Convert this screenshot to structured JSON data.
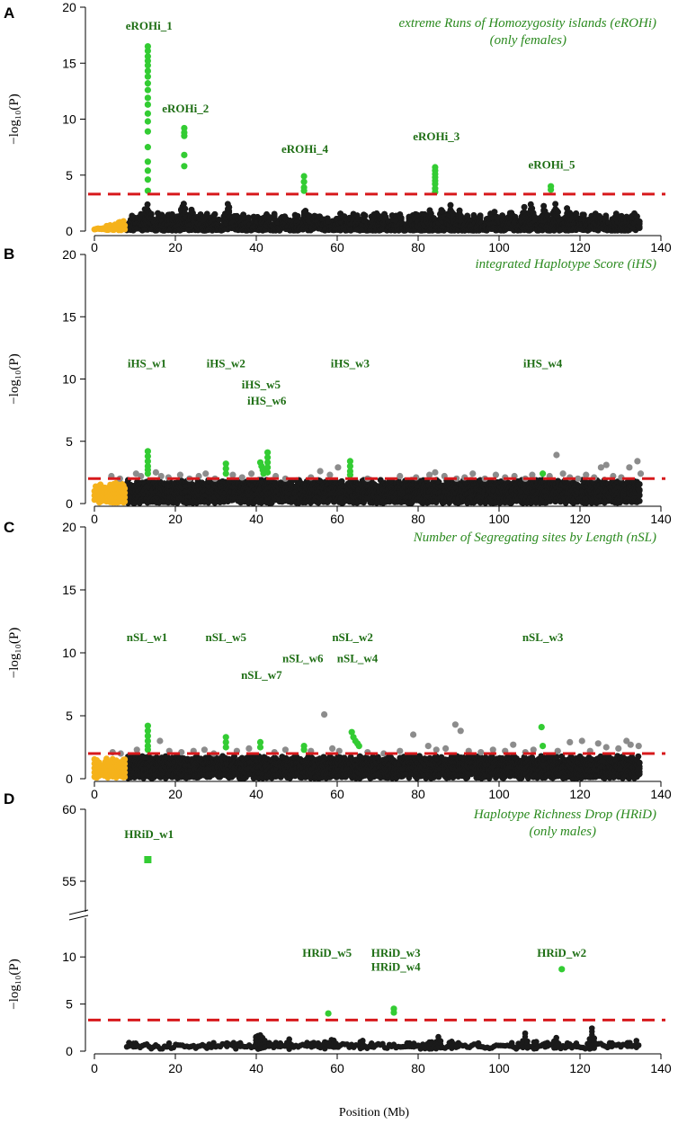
{
  "figure": {
    "x_axis_label": "Position (Mb)",
    "y_axis_label": "−log₁₀(P)",
    "colors": {
      "background_snps": "#1a1a1a",
      "nonsignificant_grey": "#8c8c8c",
      "significant": "#33cc33",
      "par_region": "#f5b21b",
      "threshold": "#d7191c",
      "annotation_text": "#1e6e14",
      "title_text": "#2b8a1f"
    }
  },
  "chart_data": [
    {
      "panel": "A",
      "type": "scatter",
      "title": [
        "extreme Runs of Homozygosity islands (eROHi)",
        "(only females)"
      ],
      "xlabel": "",
      "ylabel": "−log10(P)",
      "xlim": [
        0,
        140
      ],
      "ylim": [
        0,
        20
      ],
      "x_ticks": [
        0,
        20,
        40,
        60,
        80,
        100,
        120,
        140
      ],
      "y_ticks": [
        0,
        5,
        10,
        15,
        20
      ],
      "threshold": 3.3,
      "background": {
        "start": 8,
        "end": 135,
        "base": 0.3,
        "max": 1.6,
        "peaks": [
          [
            11,
            1.8
          ],
          [
            13,
            3.2
          ],
          [
            22,
            3.4
          ],
          [
            24,
            2.4
          ],
          [
            33,
            2.8
          ],
          [
            52,
            2.2
          ],
          [
            61,
            1.2
          ],
          [
            63,
            1.2
          ],
          [
            79,
            1.5
          ],
          [
            83,
            2.2
          ],
          [
            86,
            2.6
          ],
          [
            88,
            2.7
          ],
          [
            90,
            2.4
          ],
          [
            99,
            2.0
          ],
          [
            103,
            2.5
          ],
          [
            106,
            2.6
          ],
          [
            108,
            2.8
          ],
          [
            111,
            2.4
          ],
          [
            114,
            3.4
          ],
          [
            117,
            2.4
          ],
          [
            121,
            1.7
          ],
          [
            125,
            1.6
          ],
          [
            130,
            1.4
          ],
          [
            133,
            1.3
          ]
        ]
      },
      "par": {
        "start": 0,
        "end": 7.5,
        "max": 0.8
      },
      "significant_points": [
        [
          13.2,
          16.5
        ],
        [
          13.2,
          16.1
        ],
        [
          13.2,
          15.6
        ],
        [
          13.2,
          15.2
        ],
        [
          13.2,
          14.8
        ],
        [
          13.2,
          14.3
        ],
        [
          13.2,
          13.8
        ],
        [
          13.2,
          13.2
        ],
        [
          13.2,
          12.6
        ],
        [
          13.2,
          11.9
        ],
        [
          13.2,
          11.3
        ],
        [
          13.2,
          10.5
        ],
        [
          13.2,
          9.8
        ],
        [
          13.2,
          8.9
        ],
        [
          13.2,
          7.5
        ],
        [
          13.2,
          6.2
        ],
        [
          13.2,
          5.4
        ],
        [
          13.2,
          4.6
        ],
        [
          13.2,
          3.6
        ],
        [
          22.2,
          9.2
        ],
        [
          22.2,
          8.8
        ],
        [
          22.2,
          8.5
        ],
        [
          22.2,
          6.8
        ],
        [
          22.2,
          5.8
        ],
        [
          51.8,
          4.9
        ],
        [
          51.8,
          4.4
        ],
        [
          51.8,
          3.9
        ],
        [
          51.8,
          3.6
        ],
        [
          84.2,
          5.7
        ],
        [
          84.2,
          5.4
        ],
        [
          84.2,
          5.1
        ],
        [
          84.2,
          4.8
        ],
        [
          84.2,
          4.5
        ],
        [
          84.2,
          4.2
        ],
        [
          84.2,
          3.8
        ],
        [
          84.2,
          3.5
        ],
        [
          112.8,
          4.0
        ],
        [
          112.8,
          3.7
        ]
      ],
      "grey_points": [],
      "square_points": [],
      "annotations": [
        {
          "label": "eROHi_1",
          "x": 13.5,
          "y": 18.4
        },
        {
          "label": "eROHi_2",
          "x": 22.5,
          "y": 11.0
        },
        {
          "label": "eROHi_4",
          "x": 52.0,
          "y": 7.4
        },
        {
          "label": "eROHi_3",
          "x": 84.5,
          "y": 8.5
        },
        {
          "label": "eROHi_5",
          "x": 113.0,
          "y": 6.0
        }
      ]
    },
    {
      "panel": "B",
      "type": "scatter",
      "title": [
        "integrated Haplotype Score (iHS)"
      ],
      "xlabel": "",
      "ylabel": "−log10(P)",
      "xlim": [
        0,
        140
      ],
      "ylim": [
        0,
        20
      ],
      "x_ticks": [
        0,
        20,
        40,
        60,
        80,
        100,
        120,
        140
      ],
      "y_ticks": [
        0,
        5,
        10,
        15,
        20
      ],
      "threshold": 2.0,
      "background": {
        "start": 8,
        "end": 135,
        "base": 1.3,
        "max": 1.9,
        "peaks": []
      },
      "par": {
        "start": 0,
        "end": 7.5,
        "max": 1.7
      },
      "significant_points": [
        [
          13.2,
          4.2
        ],
        [
          13.2,
          3.8
        ],
        [
          13.2,
          3.4
        ],
        [
          13.2,
          3.0
        ],
        [
          13.2,
          2.7
        ],
        [
          13.2,
          2.4
        ],
        [
          32.5,
          3.2
        ],
        [
          32.5,
          2.8
        ],
        [
          32.5,
          2.4
        ],
        [
          41.0,
          3.3
        ],
        [
          41.3,
          3.0
        ],
        [
          41.6,
          2.7
        ],
        [
          41.8,
          2.4
        ],
        [
          42.8,
          4.1
        ],
        [
          42.8,
          3.7
        ],
        [
          42.8,
          3.3
        ],
        [
          42.8,
          2.9
        ],
        [
          42.8,
          2.5
        ],
        [
          63.2,
          3.4
        ],
        [
          63.2,
          3.0
        ],
        [
          63.2,
          2.6
        ],
        [
          63.2,
          2.3
        ],
        [
          110.8,
          2.4
        ]
      ],
      "grey_points": [
        [
          4.2,
          2.2
        ],
        [
          6.3,
          2.0
        ],
        [
          10.3,
          2.4
        ],
        [
          11.5,
          2.2
        ],
        [
          15.2,
          2.5
        ],
        [
          16.5,
          2.2
        ],
        [
          18.3,
          2.1
        ],
        [
          21.2,
          2.3
        ],
        [
          23.5,
          2.0
        ],
        [
          25.8,
          2.2
        ],
        [
          27.5,
          2.4
        ],
        [
          29.8,
          2.0
        ],
        [
          34.2,
          2.3
        ],
        [
          36.5,
          2.1
        ],
        [
          38.8,
          2.4
        ],
        [
          44.8,
          2.2
        ],
        [
          47.2,
          2.0
        ],
        [
          53.5,
          2.1
        ],
        [
          55.8,
          2.6
        ],
        [
          58.2,
          2.3
        ],
        [
          60.2,
          2.9
        ],
        [
          67.5,
          2.0
        ],
        [
          75.5,
          2.2
        ],
        [
          79.5,
          2.1
        ],
        [
          82.8,
          2.3
        ],
        [
          84.2,
          2.5
        ],
        [
          86.5,
          2.2
        ],
        [
          89.5,
          2.0
        ],
        [
          91.5,
          2.1
        ],
        [
          93.5,
          2.4
        ],
        [
          96.5,
          2.0
        ],
        [
          99.2,
          2.3
        ],
        [
          101.5,
          2.1
        ],
        [
          103.8,
          2.2
        ],
        [
          106.5,
          2.0
        ],
        [
          108.2,
          2.3
        ],
        [
          112.5,
          2.2
        ],
        [
          114.2,
          3.9
        ],
        [
          115.8,
          2.4
        ],
        [
          117.5,
          2.1
        ],
        [
          119.5,
          2.0
        ],
        [
          121.5,
          2.3
        ],
        [
          123.5,
          2.1
        ],
        [
          125.2,
          2.9
        ],
        [
          126.5,
          3.1
        ],
        [
          128.2,
          2.2
        ],
        [
          130.2,
          2.1
        ],
        [
          132.2,
          2.9
        ],
        [
          134.2,
          3.4
        ],
        [
          135.0,
          2.4
        ]
      ],
      "square_points": [],
      "annotations": [
        {
          "label": "iHS_w1",
          "x": 13.0,
          "y": 11.3
        },
        {
          "label": "iHS_w2",
          "x": 32.5,
          "y": 11.3
        },
        {
          "label": "iHS_w5",
          "x": 41.2,
          "y": 9.6
        },
        {
          "label": "iHS_w6",
          "x": 42.6,
          "y": 8.3
        },
        {
          "label": "iHS_w3",
          "x": 63.2,
          "y": 11.3
        },
        {
          "label": "iHS_w4",
          "x": 110.8,
          "y": 11.3
        }
      ]
    },
    {
      "panel": "C",
      "type": "scatter",
      "title": [
        "Number of Segregating sites by Length (nSL)"
      ],
      "xlabel": "",
      "ylabel": "−log10(P)",
      "xlim": [
        0,
        140
      ],
      "ylim": [
        0,
        20
      ],
      "x_ticks": [
        0,
        20,
        40,
        60,
        80,
        100,
        120,
        140
      ],
      "y_ticks": [
        0,
        5,
        10,
        15,
        20
      ],
      "threshold": 2.0,
      "background": {
        "start": 8,
        "end": 135,
        "base": 1.2,
        "max": 1.8,
        "peaks": []
      },
      "par": {
        "start": 0,
        "end": 7.5,
        "max": 1.6
      },
      "significant_points": [
        [
          13.2,
          4.2
        ],
        [
          13.2,
          3.8
        ],
        [
          13.2,
          3.4
        ],
        [
          13.2,
          3.0
        ],
        [
          13.2,
          2.6
        ],
        [
          13.2,
          2.3
        ],
        [
          32.5,
          3.3
        ],
        [
          32.5,
          2.9
        ],
        [
          32.5,
          2.5
        ],
        [
          41.0,
          2.9
        ],
        [
          41.0,
          2.5
        ],
        [
          51.8,
          2.6
        ],
        [
          51.8,
          2.3
        ],
        [
          63.6,
          3.7
        ],
        [
          64.0,
          3.3
        ],
        [
          64.5,
          3.0
        ],
        [
          65.0,
          2.8
        ],
        [
          65.4,
          2.6
        ],
        [
          110.5,
          4.1
        ],
        [
          110.8,
          2.6
        ]
      ],
      "grey_points": [
        [
          4.5,
          2.1
        ],
        [
          6.5,
          2.0
        ],
        [
          10.5,
          2.3
        ],
        [
          16.2,
          3.0
        ],
        [
          18.5,
          2.2
        ],
        [
          21.5,
          2.1
        ],
        [
          24.5,
          2.2
        ],
        [
          27.2,
          2.3
        ],
        [
          29.5,
          2.0
        ],
        [
          35.2,
          2.2
        ],
        [
          38.2,
          2.4
        ],
        [
          44.5,
          2.1
        ],
        [
          47.2,
          2.3
        ],
        [
          53.5,
          2.2
        ],
        [
          56.8,
          5.1
        ],
        [
          58.8,
          2.4
        ],
        [
          60.5,
          2.2
        ],
        [
          67.5,
          2.1
        ],
        [
          71.5,
          2.0
        ],
        [
          75.5,
          2.2
        ],
        [
          78.8,
          3.5
        ],
        [
          82.5,
          2.6
        ],
        [
          84.5,
          2.3
        ],
        [
          86.8,
          2.4
        ],
        [
          89.2,
          4.3
        ],
        [
          90.5,
          3.8
        ],
        [
          92.5,
          2.2
        ],
        [
          95.5,
          2.1
        ],
        [
          98.5,
          2.3
        ],
        [
          101.5,
          2.2
        ],
        [
          103.5,
          2.7
        ],
        [
          106.5,
          2.1
        ],
        [
          108.5,
          2.3
        ],
        [
          114.5,
          2.2
        ],
        [
          117.5,
          2.9
        ],
        [
          120.5,
          3.0
        ],
        [
          122.5,
          2.2
        ],
        [
          124.5,
          2.8
        ],
        [
          126.5,
          2.5
        ],
        [
          129.5,
          2.4
        ],
        [
          131.5,
          3.0
        ],
        [
          132.5,
          2.7
        ],
        [
          134.5,
          2.6
        ]
      ],
      "square_points": [],
      "annotations": [
        {
          "label": "nSL_w1",
          "x": 13.0,
          "y": 11.3
        },
        {
          "label": "nSL_w5",
          "x": 32.5,
          "y": 11.3
        },
        {
          "label": "nSL_w2",
          "x": 63.8,
          "y": 11.3
        },
        {
          "label": "nSL_w6",
          "x": 51.5,
          "y": 9.6
        },
        {
          "label": "nSL_w4",
          "x": 65.0,
          "y": 9.6
        },
        {
          "label": "nSL_w7",
          "x": 41.3,
          "y": 8.3
        },
        {
          "label": "nSL_w3",
          "x": 110.8,
          "y": 11.3
        }
      ]
    },
    {
      "panel": "D",
      "type": "scatter",
      "title": [
        "Haplotype Richness Drop (HRiD)",
        "(only males)"
      ],
      "xlabel": "Position (Mb)",
      "ylabel": "−log10(P)",
      "xlim": [
        0,
        140
      ],
      "ylim": [
        0,
        60
      ],
      "axis_break": {
        "lower": [
          0,
          12.5
        ],
        "upper": [
          52.5,
          60
        ]
      },
      "x_ticks": [
        0,
        20,
        40,
        60,
        80,
        100,
        120,
        140
      ],
      "y_ticks": [
        0,
        5,
        10,
        55,
        60
      ],
      "threshold": 3.3,
      "background": {
        "start": 8,
        "end": 135,
        "base": 0.25,
        "max": 0.9,
        "peaks": [
          [
            10,
            0.6
          ],
          [
            13,
            1.0
          ],
          [
            20,
            0.8
          ],
          [
            27,
            0.9
          ],
          [
            32,
            1.0
          ],
          [
            40.5,
            2.7
          ],
          [
            41.5,
            2.4
          ],
          [
            46,
            1.0
          ],
          [
            48,
            1.6
          ],
          [
            54,
            1.1
          ],
          [
            57,
            1.4
          ],
          [
            59,
            1.8
          ],
          [
            62,
            1.2
          ],
          [
            66,
            1.6
          ],
          [
            70,
            1.4
          ],
          [
            79,
            0.9
          ],
          [
            83,
            1.3
          ],
          [
            85,
            1.9
          ],
          [
            88,
            1.5
          ],
          [
            94,
            1.4
          ],
          [
            99,
            1.0
          ],
          [
            103,
            1.1
          ],
          [
            106.5,
            2.5
          ],
          [
            109,
            1.3
          ],
          [
            114,
            2.4
          ],
          [
            119,
            0.9
          ],
          [
            123,
            2.6
          ],
          [
            128,
            1.0
          ],
          [
            132,
            1.4
          ],
          [
            134,
            1.2
          ]
        ]
      },
      "par": null,
      "significant_points": [
        [
          57.8,
          4.0
        ],
        [
          74.0,
          4.5
        ],
        [
          74.0,
          4.1
        ],
        [
          115.5,
          8.7
        ]
      ],
      "grey_points": [],
      "square_points": [
        [
          13.2,
          56.5
        ]
      ],
      "annotations": [
        {
          "label": "HRiD_w1",
          "x": 13.5,
          "y": 58.3
        },
        {
          "label": "HRiD_w5",
          "x": 57.5,
          "y": 10.5
        },
        {
          "label": "HRiD_w3",
          "x": 74.5,
          "y": 10.5
        },
        {
          "label": "HRiD_w4",
          "x": 74.5,
          "y": 9.0
        },
        {
          "label": "HRiD_w2",
          "x": 115.5,
          "y": 10.5
        }
      ]
    }
  ]
}
